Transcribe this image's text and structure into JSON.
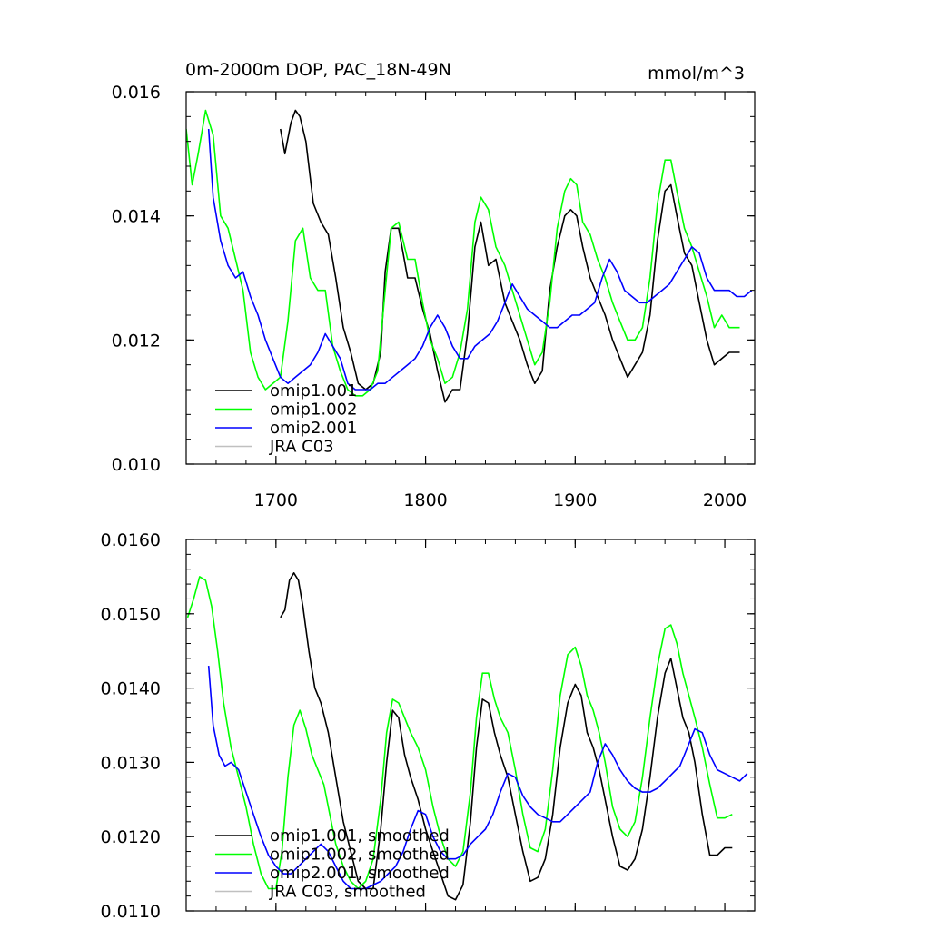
{
  "chart_data": [
    {
      "type": "line",
      "title": "0m-2000m DOP, PAC_18N-49N",
      "units": "mmol/m^3",
      "xlim": [
        1640,
        2020
      ],
      "ylim": [
        0.01,
        0.016
      ],
      "x_ticks": [
        1700,
        1800,
        1900,
        2000
      ],
      "x_tick_labels": [
        "1700",
        "1800",
        "1900",
        "2000"
      ],
      "y_ticks": [
        0.01,
        0.012,
        0.014,
        0.016
      ],
      "y_tick_labels": [
        "0.010",
        "0.012",
        "0.014",
        "0.016"
      ],
      "legend_position": "bottom-left",
      "series": [
        {
          "name": "omip1.001",
          "color": "#000000",
          "x": [
            1703,
            1706,
            1710,
            1713,
            1716,
            1720,
            1725,
            1730,
            1735,
            1740,
            1745,
            1750,
            1755,
            1760,
            1765,
            1770,
            1773,
            1777,
            1782,
            1788,
            1793,
            1798,
            1803,
            1808,
            1813,
            1818,
            1823,
            1828,
            1833,
            1837,
            1842,
            1847,
            1853,
            1858,
            1863,
            1868,
            1873,
            1878,
            1883,
            1888,
            1893,
            1897,
            1901,
            1905,
            1910,
            1915,
            1920,
            1925,
            1930,
            1935,
            1940,
            1945,
            1950,
            1955,
            1960,
            1964,
            1968,
            1973,
            1978,
            1983,
            1988,
            1993,
            1998,
            2003,
            2010
          ],
          "y": [
            0.0154,
            0.015,
            0.0155,
            0.0157,
            0.0156,
            0.0152,
            0.0142,
            0.0139,
            0.0137,
            0.013,
            0.0122,
            0.0118,
            0.0113,
            0.0112,
            0.0113,
            0.0118,
            0.0131,
            0.0138,
            0.0138,
            0.013,
            0.013,
            0.0125,
            0.0121,
            0.0115,
            0.011,
            0.0112,
            0.0112,
            0.0121,
            0.0135,
            0.0139,
            0.0132,
            0.0133,
            0.0126,
            0.0123,
            0.012,
            0.0116,
            0.0113,
            0.0115,
            0.0128,
            0.0135,
            0.014,
            0.0141,
            0.014,
            0.0135,
            0.013,
            0.0127,
            0.0124,
            0.012,
            0.0117,
            0.0114,
            0.0116,
            0.0118,
            0.0124,
            0.0136,
            0.0144,
            0.0145,
            0.014,
            0.0134,
            0.0132,
            0.0126,
            0.012,
            0.0116,
            0.0117,
            0.0118,
            0.0118
          ]
        },
        {
          "name": "omip1.002",
          "color": "#00ff00",
          "x": [
            1640,
            1644,
            1648,
            1653,
            1658,
            1663,
            1668,
            1673,
            1678,
            1683,
            1688,
            1693,
            1698,
            1703,
            1708,
            1713,
            1718,
            1723,
            1728,
            1733,
            1738,
            1743,
            1748,
            1753,
            1758,
            1763,
            1768,
            1773,
            1777,
            1782,
            1788,
            1793,
            1798,
            1803,
            1808,
            1813,
            1818,
            1823,
            1828,
            1833,
            1837,
            1842,
            1847,
            1853,
            1858,
            1863,
            1868,
            1873,
            1878,
            1883,
            1888,
            1893,
            1897,
            1901,
            1905,
            1910,
            1915,
            1920,
            1925,
            1930,
            1935,
            1940,
            1945,
            1950,
            1955,
            1960,
            1964,
            1968,
            1973,
            1978,
            1983,
            1988,
            1993,
            1998,
            2003,
            2010
          ],
          "y": [
            0.0154,
            0.0145,
            0.015,
            0.0157,
            0.0153,
            0.014,
            0.0138,
            0.0133,
            0.0128,
            0.0118,
            0.0114,
            0.0112,
            0.0113,
            0.0114,
            0.0123,
            0.0136,
            0.0138,
            0.013,
            0.0128,
            0.0128,
            0.0119,
            0.0115,
            0.0112,
            0.0111,
            0.0111,
            0.0112,
            0.0115,
            0.0128,
            0.0138,
            0.0139,
            0.0133,
            0.0133,
            0.0126,
            0.012,
            0.0117,
            0.0113,
            0.0114,
            0.0118,
            0.0125,
            0.0139,
            0.0143,
            0.0141,
            0.0135,
            0.0132,
            0.0128,
            0.0124,
            0.012,
            0.0116,
            0.0118,
            0.0126,
            0.0138,
            0.0144,
            0.0146,
            0.0145,
            0.0139,
            0.0137,
            0.0133,
            0.013,
            0.0126,
            0.0123,
            0.012,
            0.012,
            0.0122,
            0.013,
            0.0142,
            0.0149,
            0.0149,
            0.0144,
            0.0138,
            0.0135,
            0.0131,
            0.0127,
            0.0122,
            0.0124,
            0.0122,
            0.0122
          ]
        },
        {
          "name": "omip2.001",
          "color": "#0000ff",
          "x": [
            1655,
            1658,
            1663,
            1668,
            1673,
            1678,
            1683,
            1688,
            1693,
            1698,
            1703,
            1708,
            1713,
            1718,
            1723,
            1728,
            1733,
            1738,
            1743,
            1748,
            1753,
            1758,
            1763,
            1768,
            1773,
            1778,
            1783,
            1788,
            1793,
            1798,
            1803,
            1808,
            1813,
            1818,
            1823,
            1828,
            1833,
            1838,
            1843,
            1848,
            1853,
            1858,
            1863,
            1868,
            1873,
            1878,
            1883,
            1888,
            1893,
            1898,
            1903,
            1908,
            1913,
            1918,
            1923,
            1928,
            1933,
            1938,
            1943,
            1948,
            1953,
            1958,
            1963,
            1968,
            1973,
            1978,
            1983,
            1988,
            1993,
            1998,
            2003,
            2008,
            2013,
            2018
          ],
          "y": [
            0.0154,
            0.0143,
            0.0136,
            0.0132,
            0.013,
            0.0131,
            0.0127,
            0.0124,
            0.012,
            0.0117,
            0.0114,
            0.0113,
            0.0114,
            0.0115,
            0.0116,
            0.0118,
            0.0121,
            0.0119,
            0.0117,
            0.0113,
            0.0112,
            0.0112,
            0.0112,
            0.0113,
            0.0113,
            0.0114,
            0.0115,
            0.0116,
            0.0117,
            0.0119,
            0.0122,
            0.0124,
            0.0122,
            0.0119,
            0.0117,
            0.0117,
            0.0119,
            0.012,
            0.0121,
            0.0123,
            0.0126,
            0.0129,
            0.0127,
            0.0125,
            0.0124,
            0.0123,
            0.0122,
            0.0122,
            0.0123,
            0.0124,
            0.0124,
            0.0125,
            0.0126,
            0.013,
            0.0133,
            0.0131,
            0.0128,
            0.0127,
            0.0126,
            0.0126,
            0.0127,
            0.0128,
            0.0129,
            0.0131,
            0.0133,
            0.0135,
            0.0134,
            0.013,
            0.0128,
            0.0128,
            0.0128,
            0.0127,
            0.0127,
            0.0128
          ]
        },
        {
          "name": "JRA C03",
          "color": "#c0c0c0",
          "x": [],
          "y": []
        }
      ]
    },
    {
      "type": "line",
      "title": "",
      "xlim": [
        1640,
        2020
      ],
      "ylim": [
        0.011,
        0.016
      ],
      "x_ticks": [
        1700,
        1800,
        1900,
        2000
      ],
      "x_tick_labels": [],
      "y_ticks": [
        0.011,
        0.012,
        0.013,
        0.014,
        0.015,
        0.016
      ],
      "y_tick_labels": [
        "0.0110",
        "0.0120",
        "0.0130",
        "0.0140",
        "0.0150",
        "0.0160"
      ],
      "legend_position": "bottom-left",
      "series": [
        {
          "name": "omip1.001, smoothed",
          "color": "#000000",
          "x": [
            1703,
            1706,
            1709,
            1712,
            1715,
            1718,
            1722,
            1726,
            1730,
            1735,
            1740,
            1745,
            1750,
            1755,
            1760,
            1765,
            1770,
            1774,
            1778,
            1782,
            1786,
            1790,
            1795,
            1800,
            1805,
            1810,
            1815,
            1820,
            1825,
            1830,
            1834,
            1838,
            1842,
            1846,
            1850,
            1855,
            1860,
            1865,
            1870,
            1875,
            1880,
            1885,
            1890,
            1895,
            1900,
            1904,
            1908,
            1912,
            1916,
            1920,
            1925,
            1930,
            1935,
            1940,
            1945,
            1950,
            1955,
            1960,
            1964,
            1968,
            1972,
            1976,
            1980,
            1985,
            1990,
            1995,
            2000,
            2005
          ],
          "y": [
            0.01495,
            0.01505,
            0.01545,
            0.01555,
            0.01545,
            0.0151,
            0.0145,
            0.014,
            0.0138,
            0.0134,
            0.0128,
            0.0122,
            0.0118,
            0.0114,
            0.0113,
            0.0113,
            0.0121,
            0.013,
            0.0137,
            0.0136,
            0.0131,
            0.0128,
            0.0125,
            0.0121,
            0.0118,
            0.0115,
            0.0112,
            0.01115,
            0.01135,
            0.0122,
            0.0132,
            0.01385,
            0.0138,
            0.0134,
            0.0131,
            0.0128,
            0.0123,
            0.0118,
            0.0114,
            0.01145,
            0.0117,
            0.0123,
            0.0132,
            0.0138,
            0.01405,
            0.0139,
            0.0134,
            0.0132,
            0.0129,
            0.0125,
            0.012,
            0.0116,
            0.01155,
            0.0117,
            0.0121,
            0.0128,
            0.0136,
            0.0142,
            0.0144,
            0.014,
            0.0136,
            0.0134,
            0.013,
            0.0123,
            0.01175,
            0.01175,
            0.01185,
            0.01185
          ]
        },
        {
          "name": "omip1.002, smoothed",
          "color": "#00ff00",
          "x": [
            1641,
            1645,
            1649,
            1653,
            1657,
            1661,
            1665,
            1670,
            1675,
            1680,
            1685,
            1690,
            1695,
            1700,
            1704,
            1708,
            1712,
            1716,
            1720,
            1724,
            1728,
            1732,
            1736,
            1740,
            1745,
            1750,
            1755,
            1760,
            1765,
            1770,
            1774,
            1778,
            1782,
            1786,
            1790,
            1795,
            1800,
            1805,
            1810,
            1815,
            1820,
            1825,
            1830,
            1834,
            1838,
            1842,
            1846,
            1850,
            1855,
            1860,
            1865,
            1870,
            1875,
            1880,
            1885,
            1890,
            1895,
            1900,
            1904,
            1908,
            1912,
            1916,
            1920,
            1925,
            1930,
            1935,
            1940,
            1945,
            1950,
            1955,
            1960,
            1964,
            1968,
            1972,
            1976,
            1980,
            1985,
            1990,
            1995,
            2000,
            2005
          ],
          "y": [
            0.01495,
            0.0152,
            0.0155,
            0.01545,
            0.0151,
            0.0145,
            0.0138,
            0.0132,
            0.0128,
            0.0124,
            0.0119,
            0.0115,
            0.0113,
            0.0113,
            0.0118,
            0.0128,
            0.0135,
            0.0137,
            0.01345,
            0.0131,
            0.0129,
            0.0127,
            0.0123,
            0.0119,
            0.0116,
            0.0114,
            0.0113,
            0.0114,
            0.0117,
            0.0125,
            0.0134,
            0.01385,
            0.0138,
            0.0136,
            0.0134,
            0.0132,
            0.0129,
            0.0124,
            0.012,
            0.0117,
            0.0116,
            0.0118,
            0.0126,
            0.0136,
            0.0142,
            0.0142,
            0.01385,
            0.0136,
            0.0134,
            0.0129,
            0.0123,
            0.01185,
            0.0118,
            0.0121,
            0.0129,
            0.0139,
            0.01445,
            0.01455,
            0.0143,
            0.0139,
            0.0137,
            0.0134,
            0.013,
            0.0124,
            0.0121,
            0.012,
            0.0122,
            0.0128,
            0.0136,
            0.0143,
            0.0148,
            0.01485,
            0.0146,
            0.0142,
            0.0139,
            0.0136,
            0.0132,
            0.0127,
            0.01225,
            0.01225,
            0.0123
          ]
        },
        {
          "name": "omip2.001, smoothed",
          "color": "#0000ff",
          "x": [
            1655,
            1658,
            1662,
            1666,
            1670,
            1675,
            1680,
            1685,
            1690,
            1695,
            1700,
            1705,
            1710,
            1715,
            1720,
            1725,
            1730,
            1735,
            1740,
            1745,
            1750,
            1755,
            1760,
            1765,
            1770,
            1775,
            1780,
            1785,
            1790,
            1795,
            1800,
            1805,
            1810,
            1815,
            1820,
            1825,
            1830,
            1835,
            1840,
            1845,
            1850,
            1855,
            1860,
            1865,
            1870,
            1875,
            1880,
            1885,
            1890,
            1895,
            1900,
            1905,
            1910,
            1915,
            1920,
            1925,
            1930,
            1935,
            1940,
            1945,
            1950,
            1955,
            1960,
            1965,
            1970,
            1975,
            1980,
            1985,
            1990,
            1995,
            2000,
            2005,
            2010,
            2015
          ],
          "y": [
            0.0143,
            0.0135,
            0.0131,
            0.01295,
            0.013,
            0.0129,
            0.0126,
            0.0123,
            0.012,
            0.01175,
            0.0116,
            0.0115,
            0.0115,
            0.0116,
            0.0117,
            0.0118,
            0.0119,
            0.0118,
            0.0116,
            0.0114,
            0.0113,
            0.0113,
            0.0113,
            0.01135,
            0.0114,
            0.0115,
            0.0116,
            0.0118,
            0.0121,
            0.01235,
            0.0123,
            0.012,
            0.0118,
            0.0117,
            0.0117,
            0.01175,
            0.0119,
            0.012,
            0.0121,
            0.0123,
            0.0126,
            0.01285,
            0.0128,
            0.01255,
            0.0124,
            0.0123,
            0.01225,
            0.0122,
            0.0122,
            0.0123,
            0.0124,
            0.0125,
            0.0126,
            0.013,
            0.01325,
            0.0131,
            0.0129,
            0.01275,
            0.01265,
            0.0126,
            0.0126,
            0.01265,
            0.01275,
            0.01285,
            0.01295,
            0.0132,
            0.01345,
            0.0134,
            0.0131,
            0.0129,
            0.01285,
            0.0128,
            0.01275,
            0.01285
          ]
        },
        {
          "name": "JRA C03, smoothed",
          "color": "#c0c0c0",
          "x": [],
          "y": []
        }
      ]
    }
  ]
}
